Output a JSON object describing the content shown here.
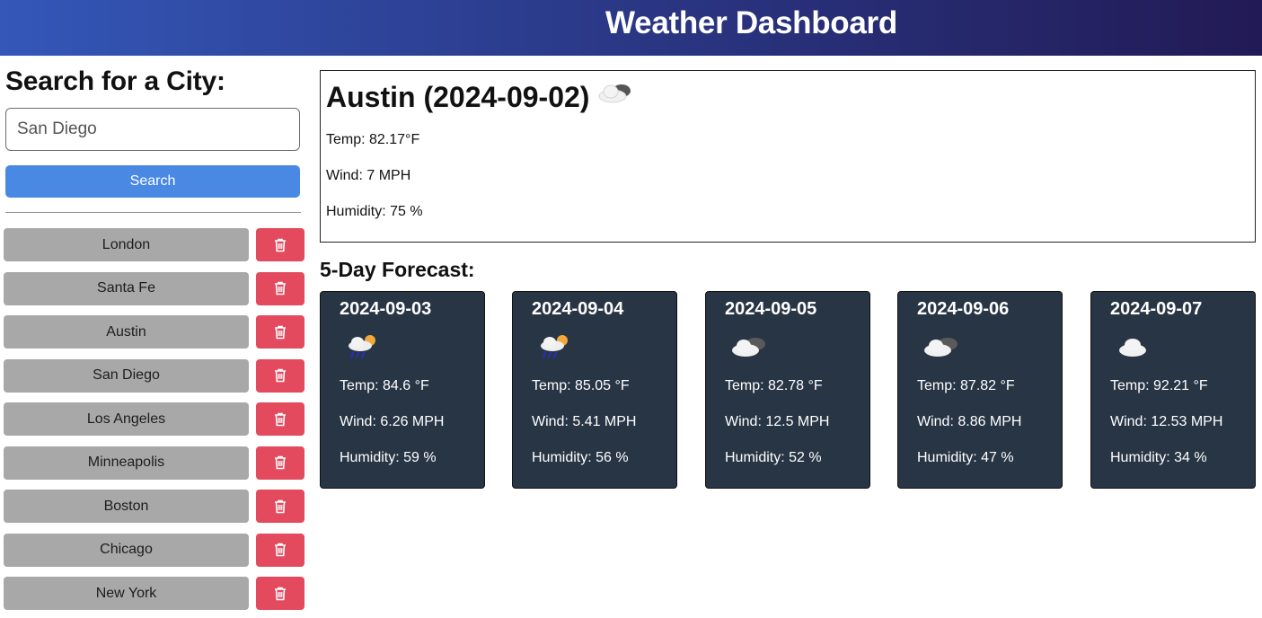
{
  "header": {
    "title": "Weather Dashboard"
  },
  "search": {
    "heading": "Search for a City:",
    "input_value": "San Diego",
    "button_label": "Search"
  },
  "history": [
    {
      "city": "London"
    },
    {
      "city": "Santa Fe"
    },
    {
      "city": "Austin"
    },
    {
      "city": "San Diego"
    },
    {
      "city": "Los Angeles"
    },
    {
      "city": "Minneapolis"
    },
    {
      "city": "Boston"
    },
    {
      "city": "Chicago"
    },
    {
      "city": "New York"
    }
  ],
  "current": {
    "title": "Austin (2024-09-02)",
    "icon": "cloudy-icon",
    "temp": "Temp: 82.17°F",
    "wind": "Wind: 7 MPH",
    "humidity": "Humidity: 75 %"
  },
  "forecast": {
    "title": "5-Day Forecast:",
    "days": [
      {
        "date": "2024-09-03",
        "icon": "rain-sun-icon",
        "temp": "Temp: 84.6 °F",
        "wind": "Wind: 6.26 MPH",
        "humidity": "Humidity: 59 %"
      },
      {
        "date": "2024-09-04",
        "icon": "rain-sun-icon",
        "temp": "Temp: 85.05 °F",
        "wind": "Wind: 5.41 MPH",
        "humidity": "Humidity: 56 %"
      },
      {
        "date": "2024-09-05",
        "icon": "cloudy-icon",
        "temp": "Temp: 82.78 °F",
        "wind": "Wind: 12.5 MPH",
        "humidity": "Humidity: 52 %"
      },
      {
        "date": "2024-09-06",
        "icon": "cloudy-icon",
        "temp": "Temp: 87.82 °F",
        "wind": "Wind: 8.86 MPH",
        "humidity": "Humidity: 47 %"
      },
      {
        "date": "2024-09-07",
        "icon": "cloud-icon",
        "temp": "Temp: 92.21 °F",
        "wind": "Wind: 12.53 MPH",
        "humidity": "Humidity: 34 %"
      }
    ]
  },
  "colors": {
    "header_start": "#3457b8",
    "header_end": "#221a55",
    "search_button": "#4a89e3",
    "history_button": "#a8a8a8",
    "delete_button": "#e34a5d",
    "forecast_card": "#283545"
  }
}
